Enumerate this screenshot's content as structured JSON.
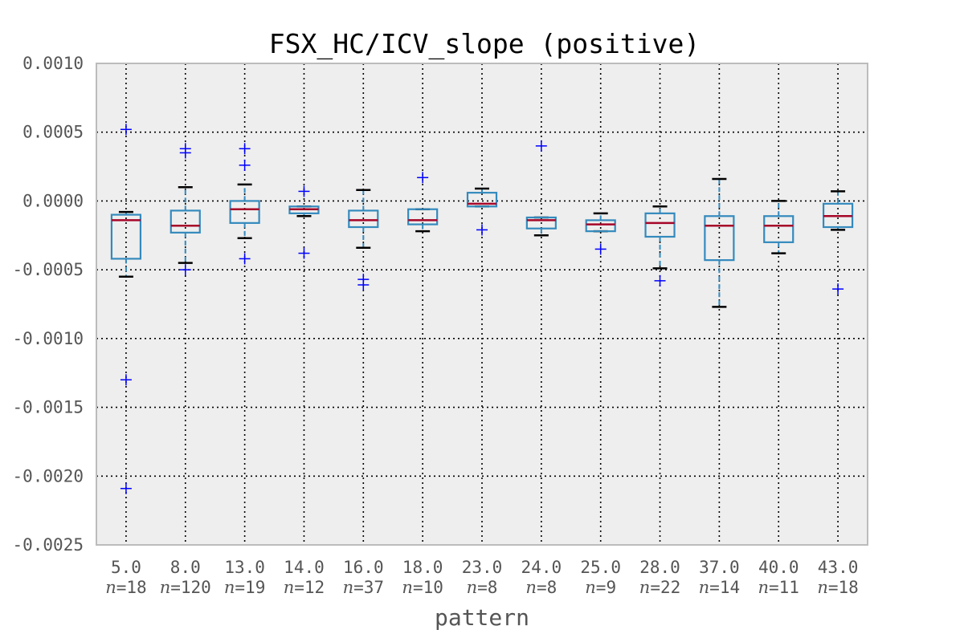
{
  "chart_data": {
    "type": "box",
    "title": "FSX_HC/ICV_slope (positive)",
    "xlabel": "pattern",
    "ylabel": "",
    "ylim": [
      -0.0025,
      0.001
    ],
    "yticks": [
      "0.0010",
      "0.0005",
      "0.0000",
      "-0.0005",
      "-0.0010",
      "-0.0015",
      "-0.0020",
      "-0.0025"
    ],
    "ytick_values": [
      0.001,
      0.0005,
      0.0,
      -0.0005,
      -0.001,
      -0.0015,
      -0.002,
      -0.0025
    ],
    "grid": true,
    "colors": {
      "box": "#348abd",
      "median": "#a60628",
      "cap": "#000000",
      "flier": "#0000ff",
      "background": "#eeeeee",
      "grid": "#000000",
      "frame": "#bcbcbc"
    },
    "n_prefix": "n=",
    "categories": [
      {
        "label": "5.0",
        "n": "18",
        "whislo": -0.00055,
        "q1": -0.00042,
        "med": -0.00014,
        "q3": -0.0001,
        "whishi": -8e-05,
        "fliers": [
          0.00052,
          -0.0013,
          -0.00209
        ]
      },
      {
        "label": "8.0",
        "n": "120",
        "whislo": -0.00045,
        "q1": -0.00023,
        "med": -0.00018,
        "q3": -7e-05,
        "whishi": 0.0001,
        "fliers": [
          0.00038,
          0.00035,
          -0.0005
        ]
      },
      {
        "label": "13.0",
        "n": "19",
        "whislo": -0.00027,
        "q1": -0.00016,
        "med": -6e-05,
        "q3": 0.0,
        "whishi": 0.00012,
        "fliers": [
          0.00038,
          0.00026,
          -0.00042
        ]
      },
      {
        "label": "14.0",
        "n": "12",
        "whislo": -0.00011,
        "q1": -9e-05,
        "med": -6e-05,
        "q3": -4e-05,
        "whishi": -4e-05,
        "fliers": [
          7e-05,
          -0.00038
        ]
      },
      {
        "label": "16.0",
        "n": "37",
        "whislo": -0.00034,
        "q1": -0.00019,
        "med": -0.00014,
        "q3": -7e-05,
        "whishi": 8e-05,
        "fliers": [
          -0.00057,
          -0.00061
        ]
      },
      {
        "label": "18.0",
        "n": "10",
        "whislo": -0.00022,
        "q1": -0.00017,
        "med": -0.00014,
        "q3": -6e-05,
        "whishi": -6e-05,
        "fliers": [
          0.00017
        ]
      },
      {
        "label": "23.0",
        "n": "8",
        "whislo": -4e-05,
        "q1": -4e-05,
        "med": -2e-05,
        "q3": 6e-05,
        "whishi": 9e-05,
        "fliers": [
          -0.00021
        ]
      },
      {
        "label": "24.0",
        "n": "8",
        "whislo": -0.00025,
        "q1": -0.0002,
        "med": -0.00014,
        "q3": -0.00012,
        "whishi": -0.00012,
        "fliers": [
          0.0004
        ]
      },
      {
        "label": "25.0",
        "n": "9",
        "whislo": -0.00022,
        "q1": -0.00022,
        "med": -0.00017,
        "q3": -0.00014,
        "whishi": -9e-05,
        "fliers": [
          -0.00035
        ]
      },
      {
        "label": "28.0",
        "n": "22",
        "whislo": -0.00049,
        "q1": -0.00026,
        "med": -0.00016,
        "q3": -9e-05,
        "whishi": -4e-05,
        "fliers": [
          -0.00058
        ]
      },
      {
        "label": "37.0",
        "n": "14",
        "whislo": -0.00077,
        "q1": -0.00043,
        "med": -0.00018,
        "q3": -0.00011,
        "whishi": 0.00016,
        "fliers": []
      },
      {
        "label": "40.0",
        "n": "11",
        "whislo": -0.00038,
        "q1": -0.0003,
        "med": -0.00018,
        "q3": -0.00011,
        "whishi": 0.0,
        "fliers": []
      },
      {
        "label": "43.0",
        "n": "18",
        "whislo": -0.00021,
        "q1": -0.00019,
        "med": -0.00011,
        "q3": -2e-05,
        "whishi": 7e-05,
        "fliers": [
          -0.00064
        ]
      }
    ]
  }
}
